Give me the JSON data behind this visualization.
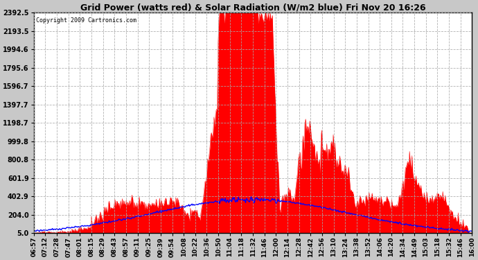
{
  "title": "Grid Power (watts red) & Solar Radiation (W/m2 blue) Fri Nov 20 16:26",
  "copyright": "Copyright 2009 Cartronics.com",
  "yticks": [
    5.0,
    204.0,
    402.9,
    601.9,
    800.8,
    999.8,
    1198.7,
    1397.7,
    1596.7,
    1795.6,
    1994.6,
    2193.5,
    2392.5
  ],
  "ymin": 5.0,
  "ymax": 2392.5,
  "bg_color": "#c8c8c8",
  "plot_bg_color": "#ffffff",
  "grid_color": "#aaaaaa",
  "red_color": "#ff0000",
  "blue_color": "#0000ff",
  "xtick_labels": [
    "06:57",
    "07:12",
    "07:28",
    "07:47",
    "08:01",
    "08:15",
    "08:29",
    "08:43",
    "08:57",
    "09:11",
    "09:25",
    "09:39",
    "09:54",
    "10:08",
    "10:22",
    "10:36",
    "10:50",
    "11:04",
    "11:18",
    "11:32",
    "11:46",
    "12:00",
    "12:14",
    "12:28",
    "12:42",
    "12:56",
    "13:10",
    "13:24",
    "13:38",
    "13:52",
    "14:06",
    "14:20",
    "14:34",
    "14:49",
    "15:03",
    "15:18",
    "15:32",
    "15:46",
    "16:00"
  ]
}
